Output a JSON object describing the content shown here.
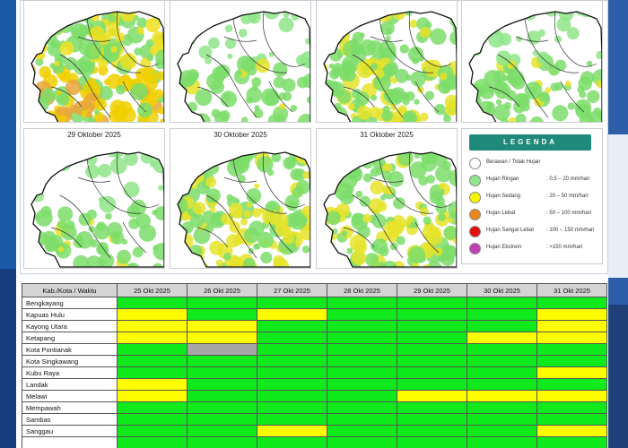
{
  "maps": [
    {
      "title": ""
    },
    {
      "title": ""
    },
    {
      "title": ""
    },
    {
      "title": ""
    },
    {
      "title": "29 Oktober 2025"
    },
    {
      "title": "30 Oktober 2025"
    },
    {
      "title": "31 Oktober 2025"
    }
  ],
  "legend": {
    "heading": "LEGENDA",
    "items": [
      {
        "label": "Berawan / Tidak Hujan",
        "range": "",
        "color": "#ffffff"
      },
      {
        "label": "Hujan Ringan",
        "range": ": 0.5 – 20 mm/hari",
        "color": "#8de68d"
      },
      {
        "label": "Hujan Sedang",
        "range": ": 20 – 50 mm/hari",
        "color": "#f5f500"
      },
      {
        "label": "Hujan Lebat",
        "range": ": 50 – 100 mm/hari",
        "color": "#e8891e"
      },
      {
        "label": "Hujan Sangat Lebat",
        "range": ": 100 – 150 mm/hari",
        "color": "#e01010"
      },
      {
        "label": "Hujan Ekstrem",
        "range": ": >150 mm/hari",
        "color": "#c040b0"
      }
    ]
  },
  "table": {
    "corner": "Kab./Kota / Waktu",
    "dates": [
      "25 Okt 2025",
      "26 Okt 2025",
      "27 Okt 2025",
      "28 Okt 2025",
      "29 Okt 2025",
      "30 Okt 2025",
      "31 Okt 2025"
    ],
    "rows": [
      {
        "name": "Bengkayang",
        "cells": [
          "green",
          "green",
          "green",
          "green",
          "green",
          "green",
          "green"
        ]
      },
      {
        "name": "Kapuas Hulu",
        "cells": [
          "yellow",
          "green",
          "yellow",
          "green",
          "green",
          "green",
          "yellow"
        ]
      },
      {
        "name": "Kayong Utara",
        "cells": [
          "yellow",
          "yellow",
          "green",
          "green",
          "green",
          "green",
          "yellow"
        ]
      },
      {
        "name": "Ketapang",
        "cells": [
          "yellow",
          "yellow",
          "green",
          "green",
          "green",
          "yellow",
          "yellow"
        ]
      },
      {
        "name": "Kota Pontianak",
        "cells": [
          "green",
          "gray",
          "green",
          "green",
          "green",
          "green",
          "green"
        ]
      },
      {
        "name": "Kota Singkawang",
        "cells": [
          "green",
          "green",
          "green",
          "green",
          "green",
          "green",
          "green"
        ]
      },
      {
        "name": "Kubu Raya",
        "cells": [
          "green",
          "green",
          "green",
          "green",
          "green",
          "green",
          "yellow"
        ]
      },
      {
        "name": "Landak",
        "cells": [
          "yellow",
          "green",
          "green",
          "green",
          "green",
          "green",
          "green"
        ]
      },
      {
        "name": "Melawi",
        "cells": [
          "yellow",
          "green",
          "green",
          "green",
          "yellow",
          "yellow",
          "yellow"
        ]
      },
      {
        "name": "Mempawah",
        "cells": [
          "green",
          "green",
          "green",
          "green",
          "green",
          "green",
          "green"
        ]
      },
      {
        "name": "Sambas",
        "cells": [
          "green",
          "green",
          "green",
          "green",
          "green",
          "green",
          "green"
        ]
      },
      {
        "name": "Sanggau",
        "cells": [
          "green",
          "green",
          "yellow",
          "green",
          "green",
          "green",
          "yellow"
        ]
      },
      {
        "name": "",
        "cells": [
          "green",
          "green",
          "green",
          "green",
          "green",
          "green",
          "green"
        ]
      }
    ]
  }
}
